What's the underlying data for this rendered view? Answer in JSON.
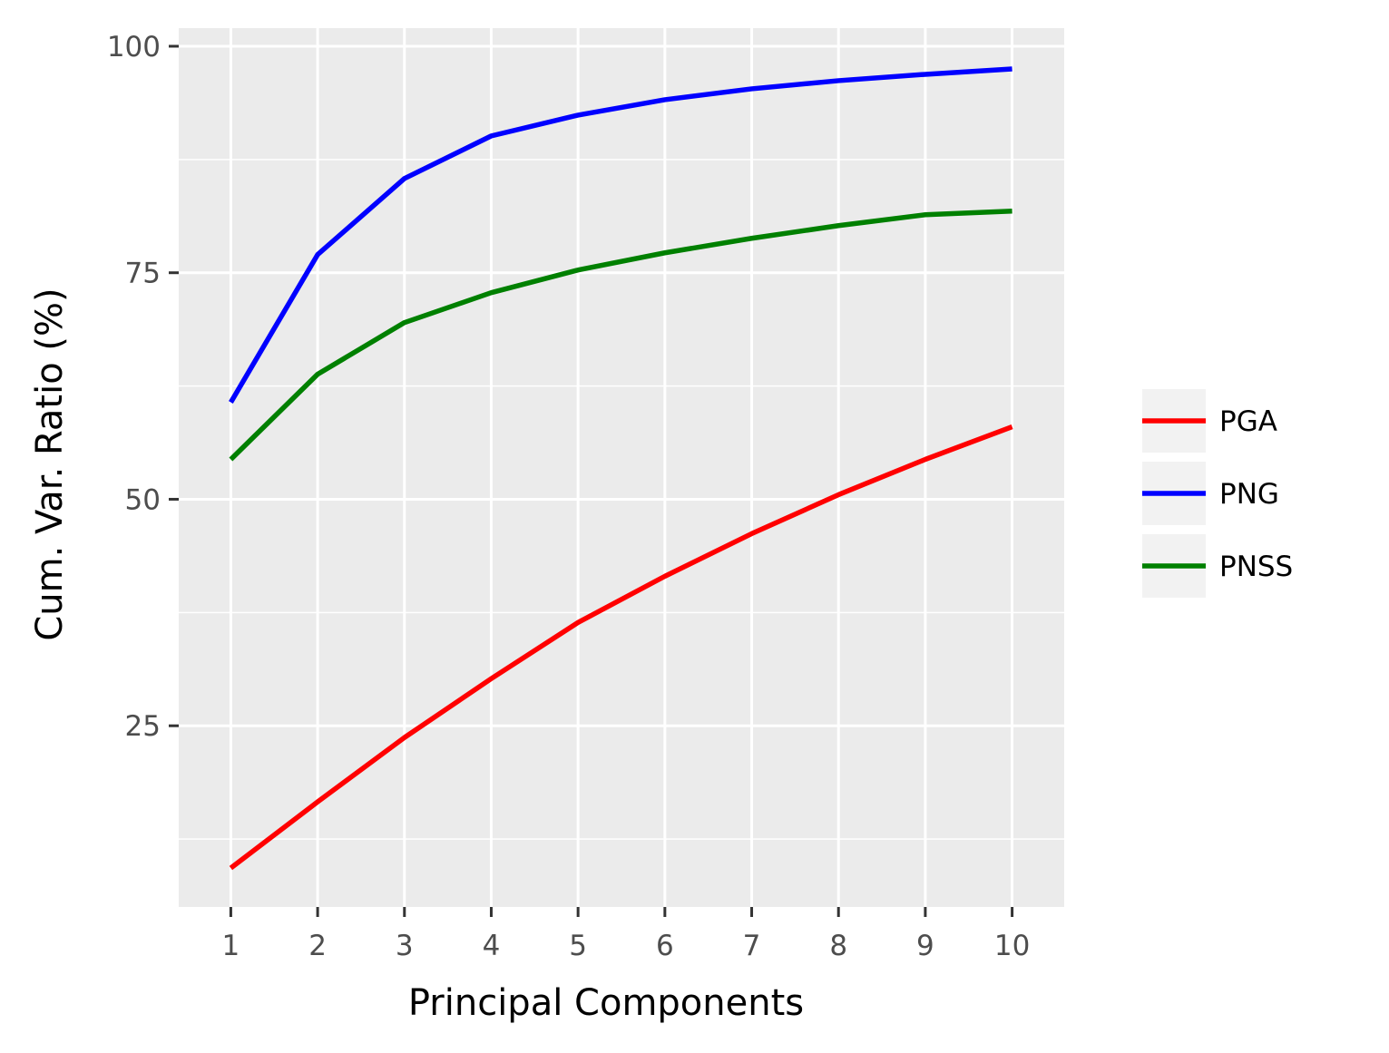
{
  "chart_data": {
    "type": "line",
    "xlabel": "Principal Components",
    "ylabel": "Cum. Var. Ratio (%)",
    "x": [
      1,
      2,
      3,
      4,
      5,
      6,
      7,
      8,
      9,
      10
    ],
    "xlim": [
      0.4,
      10.6
    ],
    "ylim": [
      5,
      102
    ],
    "y_ticks": [
      25,
      50,
      75,
      100
    ],
    "grid": true,
    "legend_position": "right",
    "series": [
      {
        "name": "PGA",
        "color": "#ff0000",
        "values": [
          9.3,
          16.6,
          23.7,
          30.2,
          36.4,
          41.5,
          46.2,
          50.5,
          54.4,
          58.0
        ]
      },
      {
        "name": "PNG",
        "color": "#0000ff",
        "values": [
          60.7,
          77.0,
          85.4,
          90.1,
          92.4,
          94.1,
          95.3,
          96.2,
          96.9,
          97.5
        ]
      },
      {
        "name": "PNSS",
        "color": "#008000",
        "values": [
          54.4,
          63.8,
          69.5,
          72.8,
          75.3,
          77.2,
          78.8,
          80.2,
          81.4,
          81.8
        ]
      }
    ]
  }
}
